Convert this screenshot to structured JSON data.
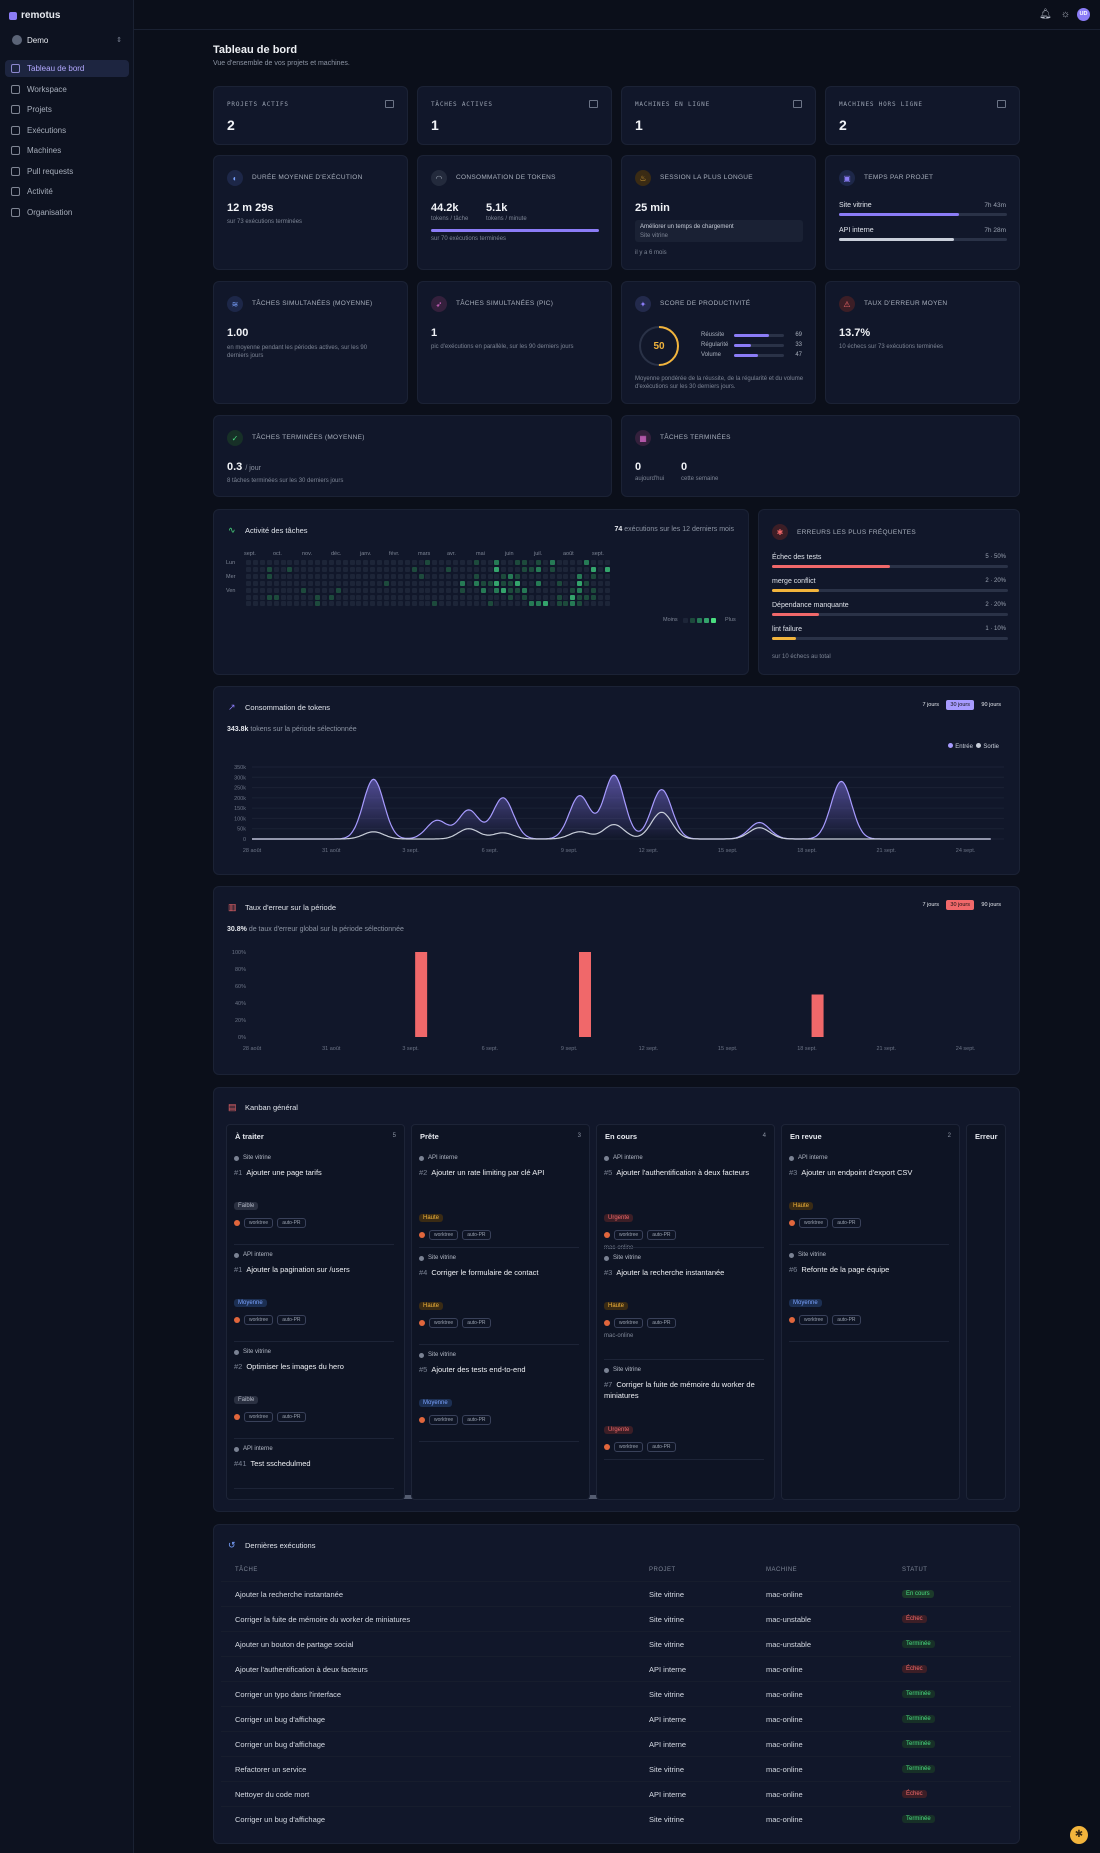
{
  "app": {
    "name": "remotus",
    "workspace": "Demo",
    "user_initials": "UD"
  },
  "nav": [
    {
      "label": "Tableau de bord",
      "active": true
    },
    {
      "label": "Workspace"
    },
    {
      "label": "Projets"
    },
    {
      "label": "Exécutions"
    },
    {
      "label": "Machines"
    },
    {
      "label": "Pull requests"
    },
    {
      "label": "Activité"
    },
    {
      "label": "Organisation"
    }
  ],
  "page": {
    "title": "Tableau de bord",
    "subtitle": "Vue d'ensemble de vos projets et machines."
  },
  "kpis": [
    {
      "label": "PROJETS ACTIFS",
      "value": "2"
    },
    {
      "label": "TÂCHES ACTIVES",
      "value": "1"
    },
    {
      "label": "MACHINES EN LIGNE",
      "value": "1"
    },
    {
      "label": "MACHINES HORS LIGNE",
      "value": "2"
    }
  ],
  "duration": {
    "title": "DURÉE MOYENNE D'EXÉCUTION",
    "value": "12 m 29s",
    "sub": "sur 73 exécutions terminées"
  },
  "tokens": {
    "title": "CONSOMMATION DE TOKENS",
    "v1": "44.2k",
    "l1": "tokens / tâche",
    "v2": "5.1k",
    "l2": "tokens / minute",
    "sub": "sur 70 exécutions terminées"
  },
  "longest": {
    "title": "SESSION LA PLUS LONGUE",
    "value": "25 min",
    "task": "Améliorer un temps de chargement",
    "project": "Site vitrine",
    "ago": "il y a 6 mois"
  },
  "time_per_project": {
    "title": "TEMPS PAR PROJET",
    "items": [
      {
        "name": "Site vitrine",
        "time": "7h 43m",
        "pct": 0.51
      },
      {
        "name": "API interne",
        "time": "7h 28m",
        "pct": 0.49
      }
    ]
  },
  "concurrent_avg": {
    "title": "TÂCHES SIMULTANÉES (MOYENNE)",
    "value": "1.00",
    "sub": "en moyenne pendant les périodes actives, sur les 90 derniers jours"
  },
  "concurrent_peak": {
    "title": "TÂCHES SIMULTANÉES (PIC)",
    "value": "1",
    "sub": "pic d'exécutions en parallèle, sur les 90 derniers jours"
  },
  "productivity": {
    "title": "SCORE DE PRODUCTIVITÉ",
    "score": "50",
    "score_value": 50,
    "items": [
      {
        "label": "Réussite",
        "value": "69",
        "v": 69
      },
      {
        "label": "Régularité",
        "value": "33",
        "v": 33
      },
      {
        "label": "Volume",
        "value": "47",
        "v": 47
      }
    ],
    "sub": "Moyenne pondérée de la réussite, de la régularité et du volume d'exécutions sur les 30 derniers jours."
  },
  "error_rate": {
    "title": "TAUX D'ERREUR MOYEN",
    "value": "13.7%",
    "sub": "10 échecs sur 73 exécutions terminées"
  },
  "done_avg": {
    "title": "TÂCHES TERMINÉES (MOYENNE)",
    "value": "0.3",
    "unit": "/ jour",
    "sub": "8 tâches terminées sur les 30 derniers jours"
  },
  "done": {
    "title": "TÂCHES TERMINÉES",
    "today": "0",
    "today_label": "aujourd'hui",
    "week": "0",
    "week_label": "cette semaine"
  },
  "activity": {
    "title": "Activité des tâches",
    "count": "74",
    "count_label": "exécutions sur les 12 derniers mois",
    "months": [
      "sept.",
      "oct.",
      "nov.",
      "déc.",
      "janv.",
      "févr.",
      "mars",
      "avr.",
      "mai",
      "juin",
      "juil.",
      "août",
      "sept."
    ],
    "days": [
      "Lun",
      "Mer",
      "Ven"
    ],
    "less": "Moins",
    "more": "Plus"
  },
  "errors_freq": {
    "title": "ERREURS LES PLUS FRÉQUENTES",
    "items": [
      {
        "label": "Échec des tests",
        "value": "5 · 50%",
        "pct": 0.5,
        "color": "#f0686a"
      },
      {
        "label": "merge conflict",
        "value": "2 · 20%",
        "pct": 0.2,
        "color": "#f2b43c"
      },
      {
        "label": "Dépendance manquante",
        "value": "2 · 20%",
        "pct": 0.2,
        "color": "#f0686a"
      },
      {
        "label": "lint failure",
        "value": "1 · 10%",
        "pct": 0.1,
        "color": "#f2b43c"
      }
    ],
    "sub": "sur 10 échecs au total"
  },
  "token_chart": {
    "title": "Consommation de tokens",
    "summary_value": "343.8k",
    "summary_label": "tokens sur la période sélectionnée",
    "ranges": [
      "7 jours",
      "30 jours",
      "90 jours"
    ],
    "legend": [
      "Entrée",
      "Sortie"
    ]
  },
  "error_chart": {
    "title": "Taux d'erreur sur la période",
    "summary_value": "30.8%",
    "summary_label": "de taux d'erreur global sur la période sélectionnée",
    "ranges": [
      "7 jours",
      "30 jours",
      "90 jours"
    ]
  },
  "chart_data": [
    {
      "type": "area",
      "title": "Consommation de tokens",
      "x": [
        "28 août",
        "31 août",
        "3 sept.",
        "6 sept.",
        "9 sept.",
        "12 sept.",
        "15 sept.",
        "18 sept.",
        "21 sept.",
        "24 sept."
      ],
      "yticks": [
        "350k",
        "300k",
        "250k",
        "200k",
        "150k",
        "100k",
        "50k",
        "0"
      ],
      "ylim": [
        0,
        350000
      ],
      "series": [
        {
          "name": "Entrée",
          "peaks": [
            [
              4.6,
              290000
            ],
            [
              7.0,
              90000
            ],
            [
              8.2,
              140000
            ],
            [
              9.5,
              200000
            ],
            [
              12.4,
              210000
            ],
            [
              13.7,
              310000
            ],
            [
              15.5,
              240000
            ],
            [
              19.2,
              80000
            ],
            [
              22.3,
              280000
            ]
          ]
        },
        {
          "name": "Sortie",
          "peaks": [
            [
              4.6,
              35000
            ],
            [
              8.2,
              50000
            ],
            [
              9.5,
              30000
            ],
            [
              12.4,
              35000
            ],
            [
              13.7,
              70000
            ],
            [
              15.5,
              130000
            ],
            [
              19.2,
              55000
            ]
          ]
        }
      ]
    },
    {
      "type": "bar",
      "title": "Taux d'erreur sur la période",
      "x": [
        "28 août",
        "31 août",
        "3 sept.",
        "6 sept.",
        "9 sept.",
        "12 sept.",
        "15 sept.",
        "18 sept.",
        "21 sept.",
        "24 sept."
      ],
      "yticks": [
        "100%",
        "80%",
        "60%",
        "40%",
        "20%",
        "0%"
      ],
      "ylim": [
        0,
        100
      ],
      "bars": [
        {
          "day": 6.4,
          "value": 100
        },
        {
          "day": 12.6,
          "value": 100
        },
        {
          "day": 21.4,
          "value": 50
        }
      ]
    }
  ],
  "kanban": {
    "title": "Kanban général",
    "columns": [
      {
        "name": "À traiter",
        "count": "5",
        "cards": [
          {
            "project": "Site vitrine",
            "num": "#1",
            "title": "Ajouter une page tarifs",
            "prio": "Faible"
          },
          {
            "project": "API interne",
            "num": "#1",
            "title": "Ajouter la pagination sur /users",
            "prio": "Moyenne"
          },
          {
            "project": "Site vitrine",
            "num": "#2",
            "title": "Optimiser les images du hero",
            "prio": "Faible"
          },
          {
            "project": "API interne",
            "num": "#41",
            "title": "Test sschedulmed",
            "prio": ""
          }
        ]
      },
      {
        "name": "Prête",
        "count": "3",
        "cards": [
          {
            "project": "API interne",
            "num": "#2",
            "title": "Ajouter un rate limiting par clé API",
            "prio": "Haute"
          },
          {
            "project": "Site vitrine",
            "num": "#4",
            "title": "Corriger le formulaire de contact",
            "prio": "Haute"
          },
          {
            "project": "Site vitrine",
            "num": "#5",
            "title": "Ajouter des tests end-to-end",
            "prio": "Moyenne"
          }
        ]
      },
      {
        "name": "En cours",
        "count": "4",
        "cards": [
          {
            "project": "API interne",
            "num": "#5",
            "title": "Ajouter l'authentification à deux facteurs",
            "prio": "Urgente",
            "machine": "mac-online"
          },
          {
            "project": "Site vitrine",
            "num": "#3",
            "title": "Ajouter la recherche instantanée",
            "prio": "Haute",
            "machine": "mac-online"
          },
          {
            "project": "Site vitrine",
            "num": "#7",
            "title": "Corriger la fuite de mémoire du worker de miniatures",
            "prio": "Urgente"
          }
        ]
      },
      {
        "name": "En revue",
        "count": "2",
        "cards": [
          {
            "project": "API interne",
            "num": "#3",
            "title": "Ajouter un endpoint d'export CSV",
            "prio": "Haute"
          },
          {
            "project": "Site vitrine",
            "num": "#6",
            "title": "Refonte de la page équipe",
            "prio": "Moyenne"
          }
        ]
      },
      {
        "name": "Erreur",
        "count": "",
        "cards": []
      }
    ],
    "chip1": "worktree",
    "chip2": "auto-PR"
  },
  "executions": {
    "title": "Dernières exécutions",
    "headers": [
      "TÂCHE",
      "PROJET",
      "MACHINE",
      "STATUT"
    ],
    "rows": [
      {
        "task": "Ajouter la recherche instantanée",
        "project": "Site vitrine",
        "machine": "mac-online",
        "status": "En cours"
      },
      {
        "task": "Corriger la fuite de mémoire du worker de miniatures",
        "project": "Site vitrine",
        "machine": "mac-unstable",
        "status": "Échec"
      },
      {
        "task": "Ajouter un bouton de partage social",
        "project": "Site vitrine",
        "machine": "mac-unstable",
        "status": "Terminée"
      },
      {
        "task": "Ajouter l'authentification à deux facteurs",
        "project": "API interne",
        "machine": "mac-online",
        "status": "Échec"
      },
      {
        "task": "Corriger un typo dans l'interface",
        "project": "Site vitrine",
        "machine": "mac-online",
        "status": "Terminée"
      },
      {
        "task": "Corriger un bug d'affichage",
        "project": "API interne",
        "machine": "mac-online",
        "status": "Terminée"
      },
      {
        "task": "Corriger un bug d'affichage",
        "project": "API interne",
        "machine": "mac-online",
        "status": "Terminée"
      },
      {
        "task": "Refactorer un service",
        "project": "Site vitrine",
        "machine": "mac-online",
        "status": "Terminée"
      },
      {
        "task": "Nettoyer du code mort",
        "project": "API interne",
        "machine": "mac-online",
        "status": "Échec"
      },
      {
        "task": "Corriger un bug d'affichage",
        "project": "Site vitrine",
        "machine": "mac-online",
        "status": "Terminée"
      }
    ]
  },
  "colors": {
    "accent": "#8b7cf6",
    "error": "#f0686a",
    "success": "#4ade80",
    "warning": "#f2b43c",
    "bg": "#0b0f1a",
    "card": "#11172a"
  }
}
